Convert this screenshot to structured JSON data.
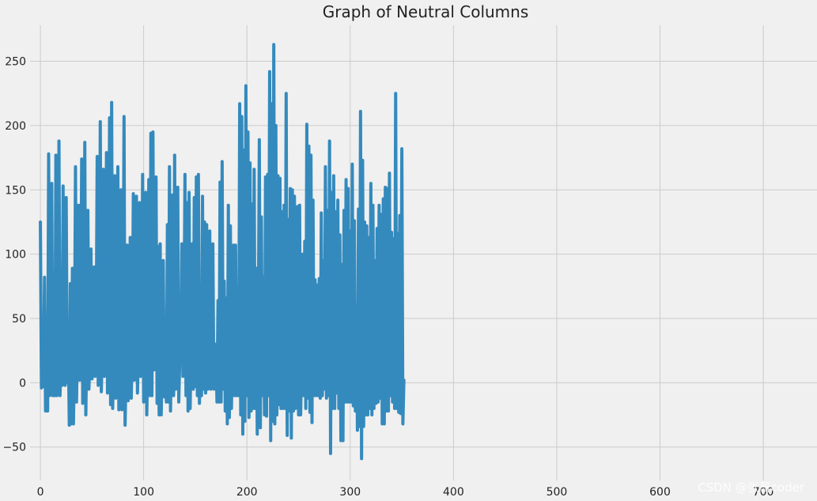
{
  "chart_data": {
    "type": "line",
    "title": "Graph of Neutral Columns",
    "xlabel": "",
    "ylabel": "",
    "xlim": [
      -10,
      752
    ],
    "ylim": [
      -76,
      278
    ],
    "xticks": [
      0,
      100,
      200,
      300,
      400,
      500,
      600,
      700
    ],
    "yticks": [
      -50,
      0,
      50,
      100,
      150,
      200,
      250
    ],
    "grid": true,
    "series": [
      {
        "color": "#348ABD",
        "x_start": 0,
        "x_step": 1,
        "values": [
          125,
          -4,
          20,
          -3,
          82,
          -22,
          30,
          -22,
          178,
          -10,
          15,
          155,
          -10,
          40,
          -10,
          177,
          -10,
          30,
          188,
          -10,
          20,
          -2,
          153,
          10,
          -2,
          144,
          0,
          35,
          -33,
          77,
          -32,
          89,
          -32,
          20,
          168,
          -15,
          40,
          138,
          2,
          30,
          174,
          -16,
          20,
          187,
          -25,
          35,
          134,
          -5,
          20,
          104,
          3,
          20,
          90,
          5,
          30,
          176,
          -2,
          20,
          203,
          -7,
          30,
          166,
          5,
          20,
          179,
          -8,
          30,
          206,
          -17,
          218,
          -20,
          40,
          161,
          -12,
          10,
          168,
          -21,
          30,
          150,
          -21,
          30,
          207,
          -33,
          10,
          107,
          -14,
          20,
          113,
          -12,
          30,
          147,
          2,
          20,
          145,
          -8,
          30,
          140,
          5,
          40,
          162,
          -15,
          30,
          148,
          -25,
          20,
          158,
          -10,
          194,
          -10,
          195,
          10,
          30,
          160,
          -16,
          106,
          -25,
          108,
          -25,
          20,
          95,
          -11,
          30,
          -15,
          123,
          -15,
          168,
          -22,
          30,
          146,
          -10,
          177,
          -5,
          40,
          152,
          -15,
          20,
          15,
          108,
          5,
          40,
          162,
          -10,
          140,
          -22,
          148,
          -20,
          30,
          108,
          -5,
          144,
          -3,
          160,
          -10,
          162,
          -16,
          30,
          -10,
          145,
          -5,
          125,
          -8,
          123,
          -5,
          30,
          118,
          -5,
          40,
          108,
          -5,
          20,
          30,
          -15,
          64,
          -15,
          156,
          -15,
          172,
          -5,
          79,
          -22,
          66,
          -32,
          138,
          -27,
          122,
          -20,
          30,
          107,
          -10,
          107,
          -10,
          40,
          -10,
          217,
          -25,
          207,
          -40,
          181,
          -30,
          231,
          -10,
          195,
          -27,
          171,
          -22,
          139,
          -20,
          166,
          -20,
          89,
          -40,
          40,
          189,
          -35,
          129,
          -10,
          82,
          -25,
          160,
          -26,
          162,
          -10,
          242,
          -45,
          217,
          -30,
          263,
          -32,
          200,
          -25,
          161,
          -17,
          159,
          -20,
          133,
          -20,
          138,
          -20,
          225,
          -41,
          127,
          -22,
          151,
          -43,
          150,
          -22,
          145,
          -20,
          40,
          137,
          -25,
          138,
          -25,
          20,
          100,
          -10,
          110,
          -20,
          201,
          -12,
          184,
          -23,
          177,
          -31,
          142,
          -10,
          80,
          -10,
          76,
          -10,
          81,
          -12,
          132,
          -10,
          95,
          -5,
          168,
          -12,
          134,
          -10,
          188,
          -55,
          148,
          -20,
          161,
          -20,
          133,
          -8,
          142,
          -20,
          115,
          -45,
          92,
          -45,
          134,
          -15,
          158,
          -15,
          151,
          -15,
          118,
          -15,
          170,
          -18,
          126,
          -22,
          59,
          -37,
          135,
          -34,
          211,
          -59,
          173,
          -34,
          125,
          -25,
          122,
          -25,
          113,
          -20,
          155,
          -25,
          138,
          -20,
          95,
          -16,
          120,
          -15,
          138,
          -12,
          131,
          -32,
          143,
          -32,
          152,
          -22,
          151,
          -22,
          163,
          -10,
          117,
          -15,
          112,
          -20,
          225,
          -20,
          116,
          -23,
          130,
          -24,
          182,
          -32,
          2
        ]
      }
    ]
  },
  "watermark": "CSDN @张哥coder"
}
